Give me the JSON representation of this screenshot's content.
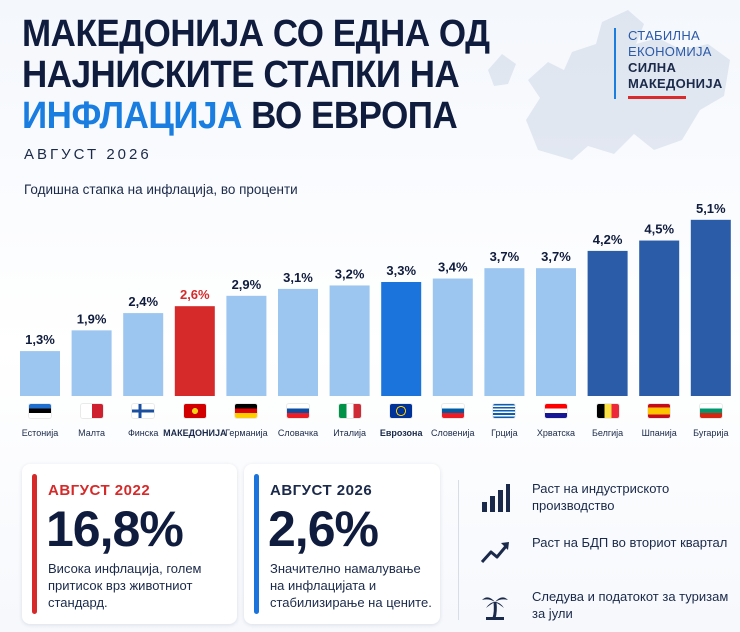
{
  "header": {
    "title_line1": "МАКЕДОНИЈА СО ЕДНА ОД",
    "title_line2": "НАЈНИСКИТЕ СТАПКИ НА",
    "title_line3_accent": "ИНФЛАЦИЈА",
    "title_line3_rest": " ВО ЕВРОПА",
    "date": "АВГУСТ 2026",
    "subtitle": "Годишна стапка на инфлација, во проценти"
  },
  "brand": {
    "line1": "СТАБИЛНА",
    "line2": "ЕКОНОМИЈА",
    "line3": "СИЛНА",
    "line4": "МАКЕДОНИЈА"
  },
  "colors": {
    "light_bar": "#9cc6ef",
    "highlight_bar": "#d62a2a",
    "eurozone_bar": "#1a74dc",
    "dark_bar": "#2a5ca8",
    "accent": "#1a7de0"
  },
  "chart_data": {
    "type": "bar",
    "categories": [
      "Естонија",
      "Малта",
      "Финска",
      "МАКЕДОНИЈА",
      "Германија",
      "Словачка",
      "Италија",
      "Еврозона",
      "Словенија",
      "Грција",
      "Хрватска",
      "Белгија",
      "Шпанија",
      "Бугарија"
    ],
    "values": [
      1.3,
      1.9,
      2.4,
      2.6,
      2.9,
      3.1,
      3.2,
      3.3,
      3.4,
      3.7,
      3.7,
      4.2,
      4.5,
      5.1
    ],
    "value_labels": [
      "1,3%",
      "1,9%",
      "2,4%",
      "2,6%",
      "2,9%",
      "3,1%",
      "3,2%",
      "3,3%",
      "3,4%",
      "3,7%",
      "3,7%",
      "4,2%",
      "4,5%",
      "5,1%"
    ],
    "bar_styles": [
      "light",
      "light",
      "light",
      "highlight",
      "light",
      "light",
      "light",
      "eurozone",
      "light",
      "light",
      "light",
      "dark",
      "dark",
      "dark"
    ],
    "flags": [
      "estonia-flag",
      "malta-flag",
      "finland-flag",
      "macedonia-flag",
      "germany-flag",
      "slovakia-flag",
      "italy-flag",
      "eu-flag",
      "slovenia-flag",
      "greece-flag",
      "croatia-flag",
      "belgium-flag",
      "spain-flag",
      "bulgaria-flag"
    ],
    "ylim": [
      0,
      5.5
    ],
    "grid": false,
    "legend": "none"
  },
  "cards": [
    {
      "label": "АВГУСТ 2022",
      "value": "16,8%",
      "desc": "Висока инфлација, голем притисок врз животниот стандард.",
      "color": "#d62a2a"
    },
    {
      "label": "АВГУСТ 2026",
      "value": "2,6%",
      "desc": "Значително намалување на инфлацијата и стабилизирање на цените.",
      "color": "#1a74dc"
    }
  ],
  "facts": [
    {
      "icon": "bar-chart-icon",
      "text": "Раст на индустриското производство"
    },
    {
      "icon": "trend-up-icon",
      "text": "Раст на БДП во вториот квартал"
    },
    {
      "icon": "palm-tree-icon",
      "text": "Следува и податокот за туризам за јули"
    }
  ]
}
